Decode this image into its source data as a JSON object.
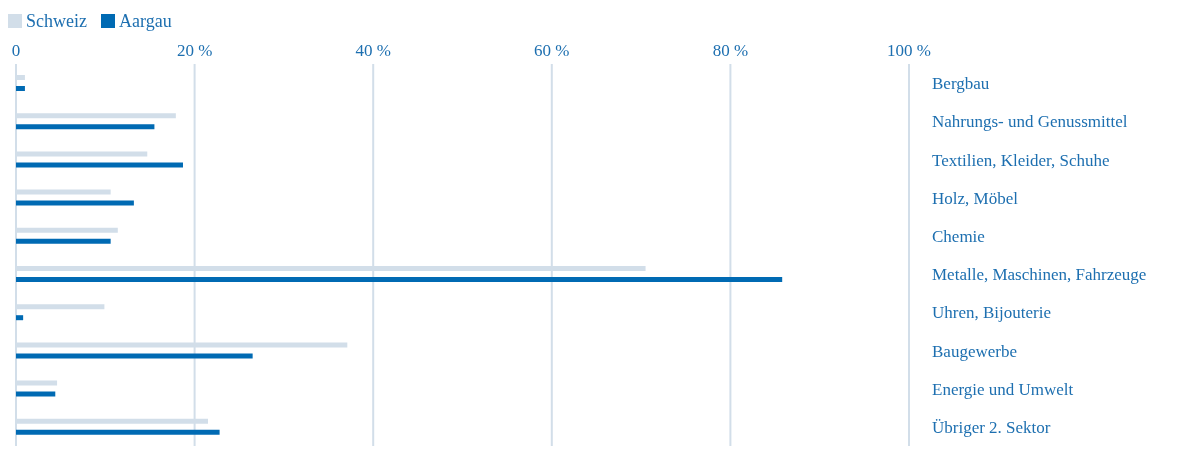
{
  "chart_data": {
    "type": "bar",
    "orientation": "horizontal",
    "categories": [
      "Bergbau",
      "Nahrungs- und Genussmittel",
      "Textilien, Kleider, Schuhe",
      "Holz, Möbel",
      "Chemie",
      "Metalle, Maschinen, Fahrzeuge",
      "Uhren, Bijouterie",
      "Baugewerbe",
      "Energie und Umwelt",
      "Übriger 2. Sektor"
    ],
    "series": [
      {
        "name": "Schweiz",
        "color": "#d2dee9",
        "values": [
          1.0,
          17.9,
          14.7,
          10.6,
          11.4,
          70.5,
          9.9,
          37.1,
          4.6,
          21.5
        ]
      },
      {
        "name": "Aargau",
        "color": "#006ab3",
        "values": [
          1.0,
          15.5,
          18.7,
          13.2,
          10.6,
          85.8,
          0.8,
          26.5,
          4.4,
          22.8
        ]
      }
    ],
    "xlim": [
      0,
      100
    ],
    "xticks": [
      0,
      {
        "value": 20,
        "label": "20 %"
      },
      {
        "value": 40,
        "label": "40 %"
      },
      {
        "value": 60,
        "label": "60 %"
      },
      {
        "value": 80,
        "label": "80 %"
      },
      {
        "value": 100,
        "label": "100 %"
      }
    ],
    "grid": "x",
    "legend": "top left"
  }
}
